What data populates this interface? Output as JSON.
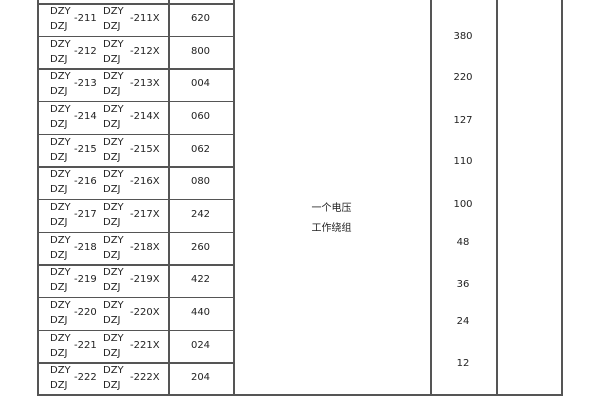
{
  "rows": [
    {
      "a1": "DZY",
      "a2": "DZJ",
      "num": "-211",
      "b1": "DZY",
      "b2": "DZJ",
      "numx": "-211X",
      "code": "620"
    },
    {
      "a1": "DZY",
      "a2": "DZJ",
      "num": "-212",
      "b1": "DZY",
      "b2": "DZJ",
      "numx": "-212X",
      "code": "800"
    },
    {
      "a1": "DZY",
      "a2": "DZJ",
      "num": "-213",
      "b1": "DZY",
      "b2": "DZJ",
      "numx": "-213X",
      "code": "004"
    },
    {
      "a1": "DZY",
      "a2": "DZJ",
      "num": "-214",
      "b1": "DZY",
      "b2": "DZJ",
      "numx": "-214X",
      "code": "060"
    },
    {
      "a1": "DZY",
      "a2": "DZJ",
      "num": "-215",
      "b1": "DZY",
      "b2": "DZJ",
      "numx": "-215X",
      "code": "062"
    },
    {
      "a1": "DZY",
      "a2": "DZJ",
      "num": "-216",
      "b1": "DZY",
      "b2": "DZJ",
      "numx": "-216X",
      "code": "080"
    },
    {
      "a1": "DZY",
      "a2": "DZJ",
      "num": "-217",
      "b1": "DZY",
      "b2": "DZJ",
      "numx": "-217X",
      "code": "242"
    },
    {
      "a1": "DZY",
      "a2": "DZJ",
      "num": "-218",
      "b1": "DZY",
      "b2": "DZJ",
      "numx": "-218X",
      "code": "260"
    },
    {
      "a1": "DZY",
      "a2": "DZJ",
      "num": "-219",
      "b1": "DZY",
      "b2": "DZJ",
      "numx": "-219X",
      "code": "422"
    },
    {
      "a1": "DZY",
      "a2": "DZJ",
      "num": "-220",
      "b1": "DZY",
      "b2": "DZJ",
      "numx": "-220X",
      "code": "440"
    },
    {
      "a1": "DZY",
      "a2": "DZJ",
      "num": "-221",
      "b1": "DZY",
      "b2": "DZJ",
      "numx": "-221X",
      "code": "024"
    },
    {
      "a1": "DZY",
      "a2": "DZJ",
      "num": "-222",
      "b1": "DZY",
      "b2": "DZJ",
      "numx": "-222X",
      "code": "204"
    }
  ],
  "winding": {
    "line1": "一个电压",
    "line2": "工作绕组"
  },
  "voltages": [
    "380",
    "220",
    "127",
    "110",
    "100",
    "48",
    "36",
    "24",
    "12"
  ]
}
